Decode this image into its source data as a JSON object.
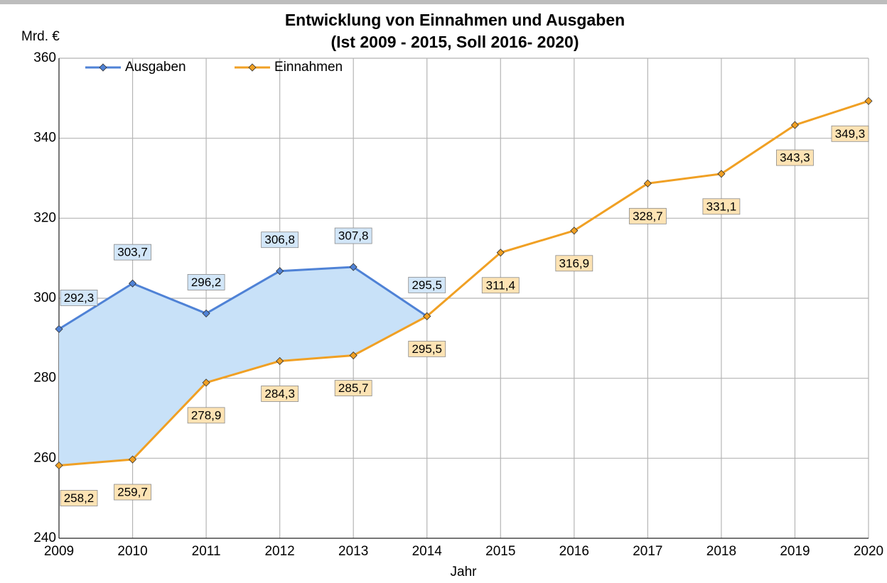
{
  "chart_data": {
    "type": "line",
    "title": "Entwicklung von Einnahmen und Ausgaben",
    "subtitle": "(Ist 2009 - 2015, Soll 2016- 2020)",
    "y_label": "Mrd. €",
    "x_label": "Jahr",
    "categories": [
      "2009",
      "2010",
      "2011",
      "2012",
      "2013",
      "2014",
      "2015",
      "2016",
      "2017",
      "2018",
      "2019",
      "2020"
    ],
    "series": [
      {
        "name": "Ausgaben",
        "color": "#4f82d6",
        "values": [
          292.3,
          303.7,
          296.2,
          306.8,
          307.8,
          295.5,
          null,
          null,
          null,
          null,
          null,
          null
        ],
        "value_labels": [
          "292,3",
          "303,7",
          "296,2",
          "306,8",
          "307,8",
          "295,5",
          null,
          null,
          null,
          null,
          null,
          null
        ]
      },
      {
        "name": "Einnahmen",
        "color": "#f0a024",
        "values": [
          258.2,
          259.7,
          278.9,
          284.3,
          285.7,
          295.5,
          311.4,
          316.9,
          328.7,
          331.1,
          343.3,
          349.3
        ],
        "value_labels": [
          "258,2",
          "259,7",
          "278,9",
          "284,3",
          "285,7",
          "295,5",
          "311,4",
          "316,9",
          "328,7",
          "331,1",
          "343,3",
          "349,3"
        ]
      }
    ],
    "ylim": [
      240,
      360
    ],
    "yticks": [
      240,
      260,
      280,
      300,
      320,
      340,
      360
    ],
    "grid": true,
    "fill_between": true,
    "fill_color": "#c8e1f8",
    "legend": "top-left"
  }
}
